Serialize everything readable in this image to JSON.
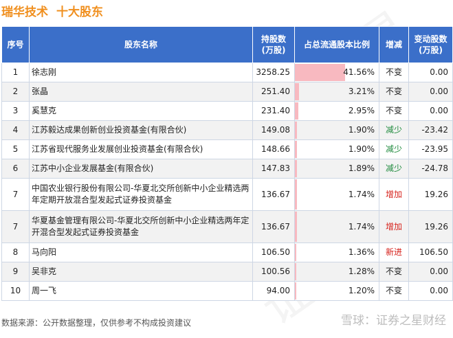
{
  "title": {
    "company": "瑞华技术",
    "topic": "十大股东"
  },
  "columns": [
    "序号",
    "股东名称",
    "持股数\n(万股)",
    "占总流通股本比例",
    "增减",
    "变动股数\n(万股)"
  ],
  "rows": [
    {
      "idx": "1",
      "name": "徐志刚",
      "shares": "3258.25",
      "ratio": "41.56%",
      "ratio_value": 41.56,
      "change": "不变",
      "change_type": "none",
      "delta": "0.00"
    },
    {
      "idx": "2",
      "name": "张晶",
      "shares": "251.40",
      "ratio": "3.21%",
      "ratio_value": 3.21,
      "change": "不变",
      "change_type": "none",
      "delta": "0.00"
    },
    {
      "idx": "3",
      "name": "奚慧克",
      "shares": "231.40",
      "ratio": "2.95%",
      "ratio_value": 2.95,
      "change": "不变",
      "change_type": "none",
      "delta": "0.00"
    },
    {
      "idx": "4",
      "name": "江苏毅达成果创新创业投资基金(有限合伙)",
      "shares": "149.08",
      "ratio": "1.90%",
      "ratio_value": 1.9,
      "change": "减少",
      "change_type": "down",
      "delta": "-23.42"
    },
    {
      "idx": "5",
      "name": "江苏省现代服务业发展创业投资基金(有限合伙)",
      "shares": "148.66",
      "ratio": "1.90%",
      "ratio_value": 1.9,
      "change": "减少",
      "change_type": "down",
      "delta": "-23.95"
    },
    {
      "idx": "6",
      "name": "江苏中小企业发展基金(有限合伙)",
      "shares": "147.83",
      "ratio": "1.89%",
      "ratio_value": 1.89,
      "change": "减少",
      "change_type": "down",
      "delta": "-24.78"
    },
    {
      "idx": "7",
      "name": "中国农业银行股份有限公司-华夏北交所创新中小企业精选两年定期开放混合型发起式证券投资基金",
      "shares": "136.67",
      "ratio": "1.74%",
      "ratio_value": 1.74,
      "change": "增加",
      "change_type": "up",
      "delta": "19.26",
      "tall": true
    },
    {
      "idx": "7",
      "name": "华夏基金管理有限公司-华夏北交所创新中小企业精选两年定开混合型发起式证券投资基金",
      "shares": "136.67",
      "ratio": "1.74%",
      "ratio_value": 1.74,
      "change": "增加",
      "change_type": "up",
      "delta": "19.26",
      "tall": true
    },
    {
      "idx": "8",
      "name": "马向阳",
      "shares": "106.50",
      "ratio": "1.36%",
      "ratio_value": 1.36,
      "change": "新进",
      "change_type": "up",
      "delta": "106.50"
    },
    {
      "idx": "9",
      "name": "吴非克",
      "shares": "100.56",
      "ratio": "1.28%",
      "ratio_value": 1.28,
      "change": "不变",
      "change_type": "none",
      "delta": "0.00"
    },
    {
      "idx": "10",
      "name": "周一飞",
      "shares": "94.00",
      "ratio": "1.20%",
      "ratio_value": 1.2,
      "change": "不变",
      "change_type": "none",
      "delta": "0.00"
    }
  ],
  "footer": "数据来源：公开数据整理，仅供参考不构成投资建议",
  "brand": "雪球：证券之星财经",
  "watermark": "证券之星",
  "colors": {
    "title": "#f08f1e",
    "header_bg": "#3b6fc9",
    "bar": "#f8b9c0",
    "increase": "#d6201a",
    "decrease": "#1f8a3d"
  }
}
